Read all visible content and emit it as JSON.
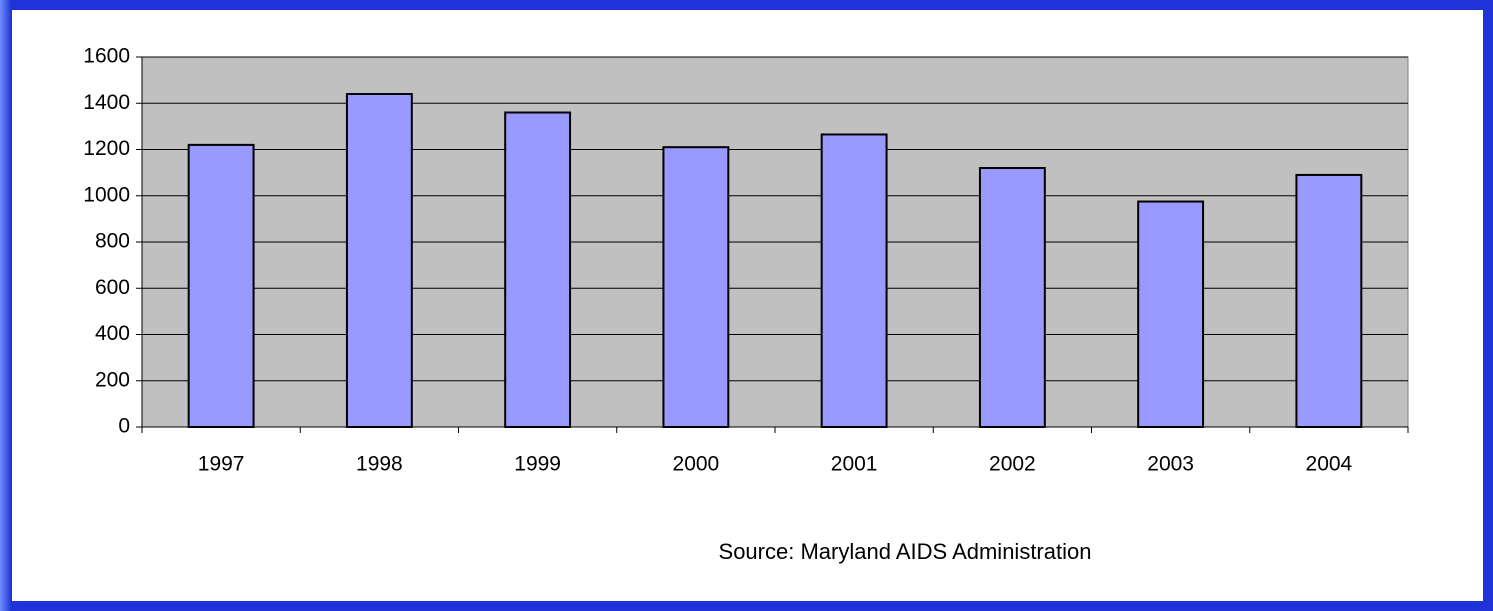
{
  "chart_data": {
    "type": "bar",
    "categories": [
      "1997",
      "1998",
      "1999",
      "2000",
      "2001",
      "2002",
      "2003",
      "2004"
    ],
    "values": [
      1220,
      1440,
      1360,
      1210,
      1265,
      1120,
      975,
      1090
    ],
    "color": "#9999ff",
    "ylim": [
      0,
      1600
    ],
    "yticks": [
      0,
      200,
      400,
      600,
      800,
      1000,
      1200,
      1400,
      1600
    ],
    "grid": true,
    "annotation": "Source: Maryland AIDS Administration"
  }
}
